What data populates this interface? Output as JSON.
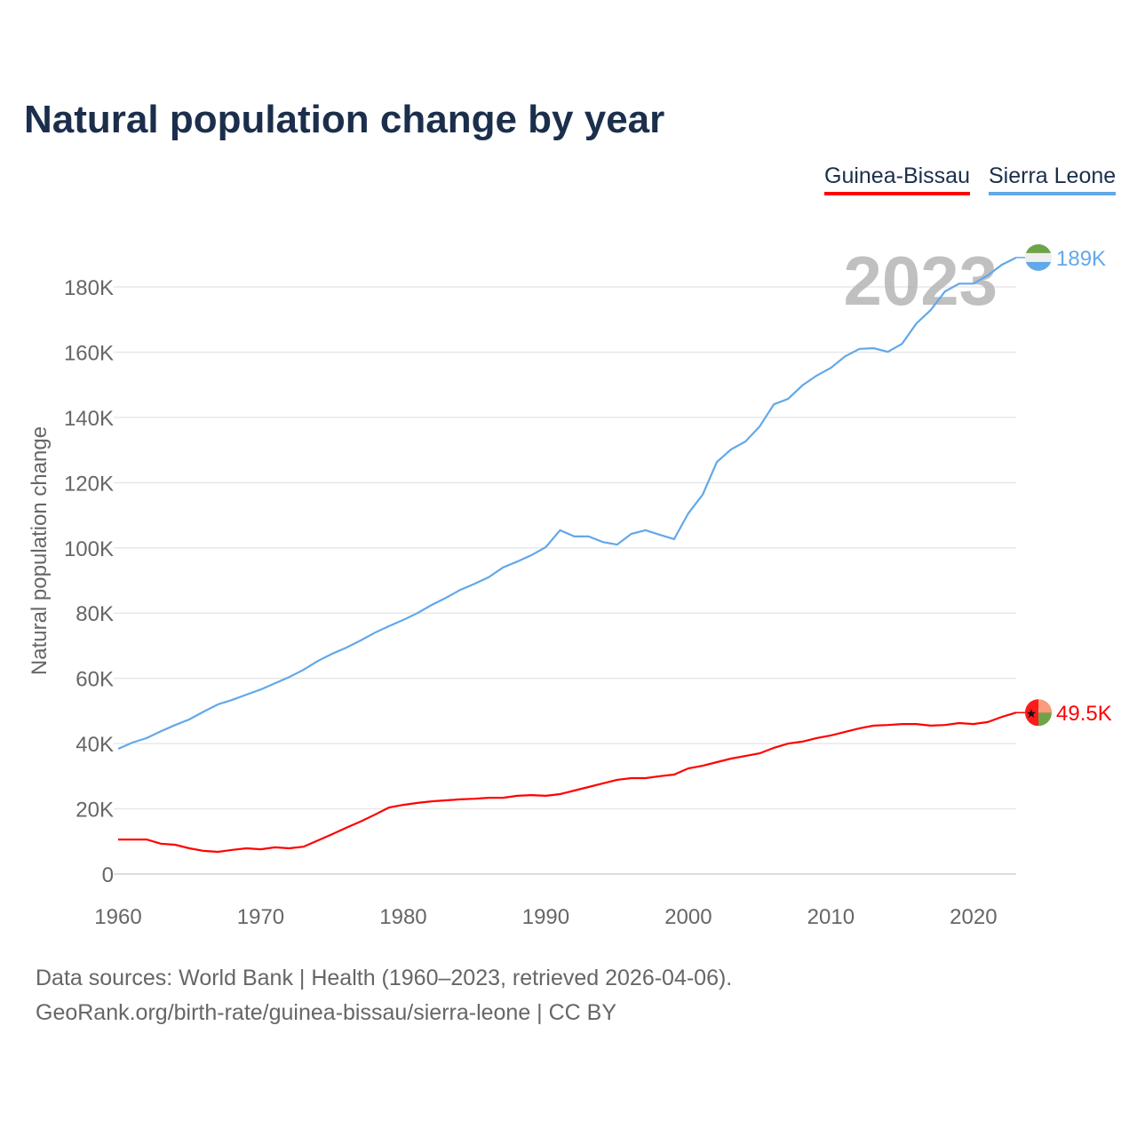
{
  "chart_data": {
    "type": "line",
    "title": "Natural population change by year",
    "xlabel": "",
    "ylabel": "Natural population change",
    "xlim": [
      1960,
      2023
    ],
    "ylim": [
      0,
      190000
    ],
    "x_ticks": [
      "1960",
      "1970",
      "1980",
      "1990",
      "2000",
      "2010",
      "2020"
    ],
    "y_ticks": [
      {
        "v": 0,
        "label": "0"
      },
      {
        "v": 20000,
        "label": "20K"
      },
      {
        "v": 40000,
        "label": "40K"
      },
      {
        "v": 60000,
        "label": "60K"
      },
      {
        "v": 80000,
        "label": "80K"
      },
      {
        "v": 100000,
        "label": "100K"
      },
      {
        "v": 120000,
        "label": "120K"
      },
      {
        "v": 140000,
        "label": "140K"
      },
      {
        "v": 160000,
        "label": "160K"
      },
      {
        "v": 180000,
        "label": "180K"
      }
    ],
    "grid": true,
    "legend_position": "top-right",
    "year_watermark": "2023",
    "x_start": 1960,
    "series": [
      {
        "name": "Guinea-Bissau",
        "color": "#ff0000",
        "end_label": "49.5K",
        "values": [
          10600,
          10600,
          10600,
          9300,
          9000,
          7900,
          7100,
          6800,
          7400,
          7900,
          7600,
          8200,
          7900,
          8400,
          10300,
          12200,
          14200,
          16100,
          18200,
          20400,
          21200,
          21800,
          22300,
          22600,
          22900,
          23100,
          23400,
          23400,
          24000,
          24200,
          24000,
          24500,
          25600,
          26700,
          27800,
          28900,
          29400,
          29400,
          30000,
          30500,
          32400,
          33200,
          34300,
          35400,
          36200,
          37000,
          38700,
          40000,
          40600,
          41700,
          42500,
          43600,
          44700,
          45500,
          45700,
          46000,
          46000,
          45500,
          45700,
          46300,
          46000,
          46600,
          48200,
          49500
        ]
      },
      {
        "name": "Sierra Leone",
        "color": "#62a8ea",
        "end_label": "189K",
        "values": [
          38400,
          40300,
          41700,
          43800,
          45700,
          47400,
          49800,
          52000,
          53400,
          55000,
          56600,
          58500,
          60400,
          62600,
          65300,
          67500,
          69400,
          71600,
          74000,
          76000,
          77900,
          80000,
          82500,
          84700,
          87100,
          89000,
          91000,
          94000,
          95800,
          97800,
          100200,
          105400,
          103500,
          103500,
          101800,
          101000,
          104300,
          105400,
          104000,
          102700,
          110600,
          116300,
          126300,
          130200,
          132600,
          137200,
          144000,
          145700,
          149800,
          152800,
          155200,
          158700,
          161000,
          161200,
          160100,
          162600,
          168800,
          172900,
          178600,
          181000,
          181000,
          183500,
          186800,
          189000
        ]
      }
    ]
  },
  "footer": {
    "line1": "Data sources: World Bank | Health (1960–2023, retrieved 2026-04-06).",
    "line2": "GeoRank.org/birth-rate/guinea-bissau/sierra-leone | CC BY"
  }
}
